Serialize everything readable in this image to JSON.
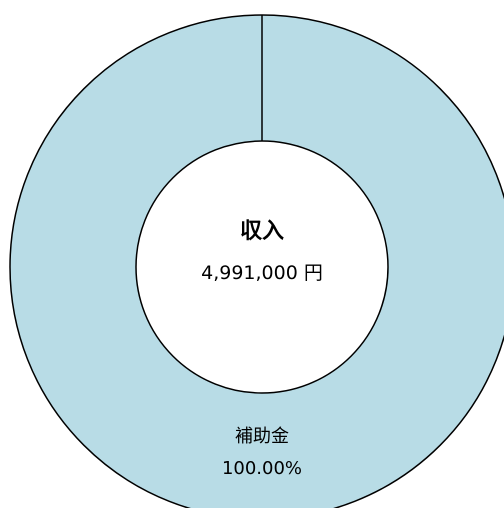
{
  "chart_data": {
    "type": "pie",
    "style": "donut",
    "center": {
      "title": "収入",
      "value": "4,991,000 円"
    },
    "categories": [
      "補助金"
    ],
    "values": [
      100.0
    ],
    "labels": [
      {
        "name": "補助金",
        "percent": "100.00%"
      }
    ],
    "colors": {
      "slice": "#b8dce6",
      "stroke": "#000000",
      "hole": "#ffffff"
    },
    "legend": "none"
  }
}
